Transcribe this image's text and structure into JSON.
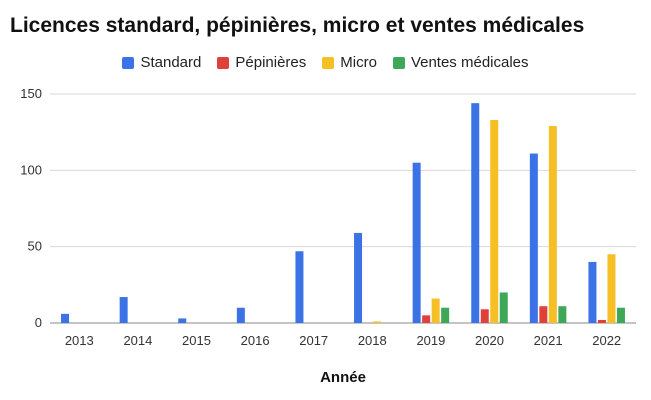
{
  "chart_data": {
    "type": "bar",
    "title": "Licences standard, pépinières, micro et ventes médicales",
    "xlabel": "Année",
    "ylabel": "",
    "categories": [
      "2013",
      "2014",
      "2015",
      "2016",
      "2017",
      "2018",
      "2019",
      "2020",
      "2021",
      "2022"
    ],
    "ylim": [
      0,
      150
    ],
    "yticks": [
      0,
      50,
      100,
      150
    ],
    "grid": true,
    "legend": "top-center",
    "series": [
      {
        "name": "Standard",
        "color": "#3b73e6",
        "values": [
          6,
          17,
          3,
          10,
          47,
          59,
          105,
          144,
          111,
          40
        ]
      },
      {
        "name": "Pépinières",
        "color": "#e0403a",
        "values": [
          0,
          0,
          0,
          0,
          0,
          0,
          5,
          9,
          11,
          2
        ]
      },
      {
        "name": "Micro",
        "color": "#f6bf26",
        "values": [
          0,
          0,
          0,
          0,
          0,
          1,
          16,
          133,
          129,
          45
        ]
      },
      {
        "name": "Ventes médicales",
        "color": "#3da857",
        "values": [
          0,
          0,
          0,
          0,
          0,
          0,
          10,
          20,
          11,
          10
        ]
      }
    ]
  }
}
